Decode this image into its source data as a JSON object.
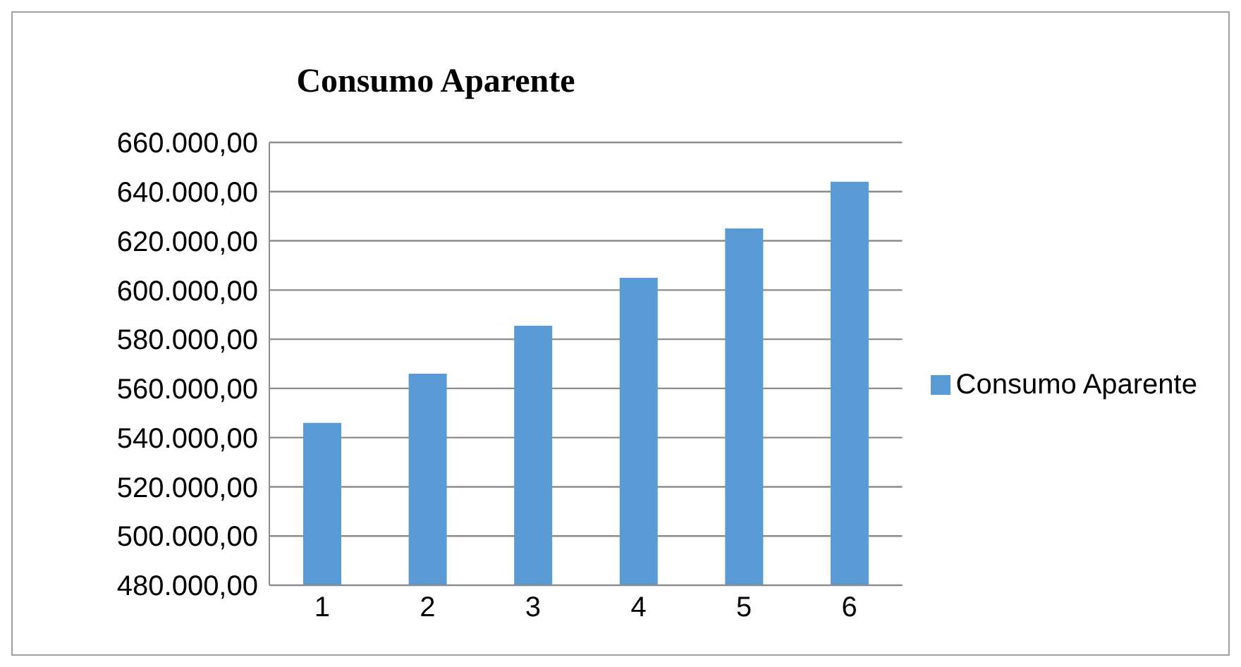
{
  "chart_data": {
    "type": "bar",
    "title": "Consumo Aparente",
    "categories": [
      "1",
      "2",
      "3",
      "4",
      "5",
      "6"
    ],
    "series": [
      {
        "name": "Consumo Aparente",
        "color": "#5b9bd5",
        "values": [
          546000,
          566000,
          585500,
          605000,
          625000,
          644000
        ]
      }
    ],
    "ylim": [
      480000,
      660000
    ],
    "yticks": [
      {
        "value": 480000,
        "label": "480.000,00"
      },
      {
        "value": 500000,
        "label": "500.000,00"
      },
      {
        "value": 520000,
        "label": "520.000,00"
      },
      {
        "value": 540000,
        "label": "540.000,00"
      },
      {
        "value": 560000,
        "label": "560.000,00"
      },
      {
        "value": 580000,
        "label": "580.000,00"
      },
      {
        "value": 600000,
        "label": "600.000,00"
      },
      {
        "value": 620000,
        "label": "620.000,00"
      },
      {
        "value": 640000,
        "label": "640.000,00"
      },
      {
        "value": 660000,
        "label": "660.000,00"
      }
    ],
    "grid": "y",
    "legend": "right"
  }
}
